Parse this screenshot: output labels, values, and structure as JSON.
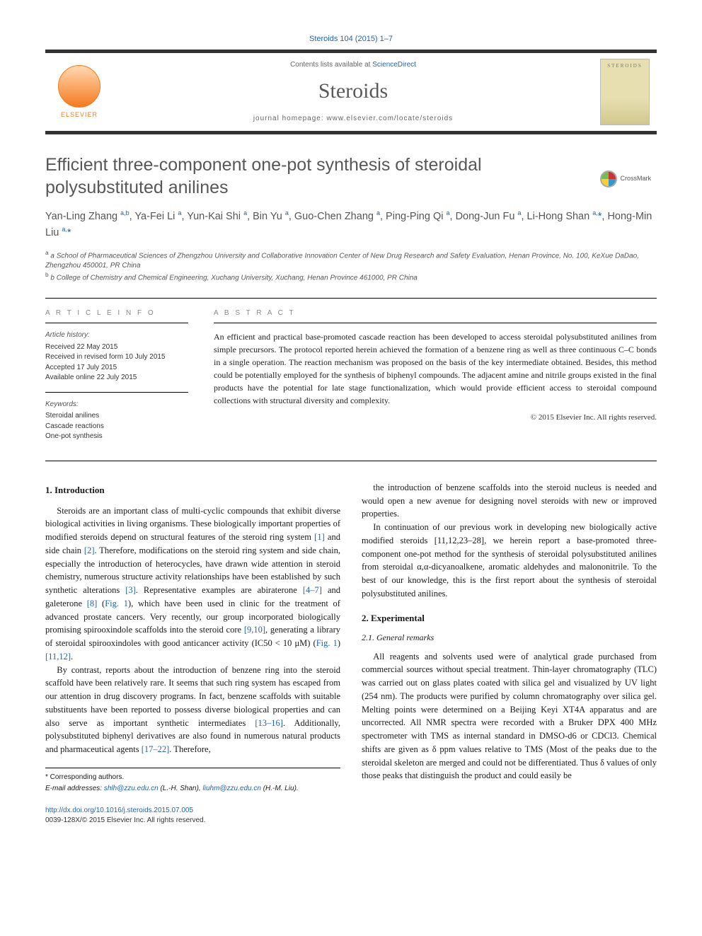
{
  "citation": "Steroids 104 (2015) 1–7",
  "header": {
    "contents_prefix": "Contents lists available at ",
    "contents_link": "ScienceDirect",
    "journal_title": "Steroids",
    "homepage_label": "journal homepage: ",
    "homepage_url": "www.elsevier.com/locate/steroids",
    "publisher_logo": "ELSEVIER",
    "cover_label": "STEROIDS"
  },
  "article": {
    "title": "Efficient three-component one-pot synthesis of steroidal polysubstituted anilines",
    "crossmark": "CrossMark",
    "authors_html": "Yan-Ling Zhang <sup>a,b</sup>, Ya-Fei Li <sup>a</sup>, Yun-Kai Shi <sup>a</sup>, Bin Yu <sup>a</sup>, Guo-Chen Zhang <sup>a</sup>, Ping-Ping Qi <sup>a</sup>, Dong-Jun Fu <sup>a</sup>, Li-Hong Shan <sup>a,</sup><span class='star'>*</span>, Hong-Min Liu <sup>a,</sup><span class='star'>*</span>",
    "affiliations": [
      "a School of Pharmaceutical Sciences of Zhengzhou University and Collaborative Innovation Center of New Drug Research and Safety Evaluation, Henan Province, No. 100, KeXue DaDao, Zhengzhou 450001, PR China",
      "b College of Chemistry and Chemical Engineering, Xuchang University, Xuchang, Henan Province 461000, PR China"
    ]
  },
  "info": {
    "heading": "A R T I C L E   I N F O",
    "history_label": "Article history:",
    "history": [
      "Received 22 May 2015",
      "Received in revised form 10 July 2015",
      "Accepted 17 July 2015",
      "Available online 22 July 2015"
    ],
    "keywords_label": "Keywords:",
    "keywords": [
      "Steroidal anilines",
      "Cascade reactions",
      "One-pot synthesis"
    ]
  },
  "abstract": {
    "heading": "A B S T R A C T",
    "text": "An efficient and practical base-promoted cascade reaction has been developed to access steroidal polysubstituted anilines from simple precursors. The protocol reported herein achieved the formation of a benzene ring as well as three continuous C–C bonds in a single operation. The reaction mechanism was proposed on the basis of the key intermediate obtained. Besides, this method could be potentially employed for the synthesis of biphenyl compounds. The adjacent amine and nitrile groups existed in the final products have the potential for late stage functionalization, which would provide efficient access to steroidal compound collections with structural diversity and complexity.",
    "copyright": "© 2015 Elsevier Inc. All rights reserved."
  },
  "body": {
    "s1_heading": "1. Introduction",
    "s1_p1": "Steroids are an important class of multi-cyclic compounds that exhibit diverse biological activities in living organisms. These biologically important properties of modified steroids depend on structural features of the steroid ring system [1] and side chain [2]. Therefore, modifications on the steroid ring system and side chain, especially the introduction of heterocycles, have drawn wide attention in steroid chemistry, numerous structure activity relationships have been established by such synthetic alterations [3]. Representative examples are abiraterone [4–7] and galeterone [8] (Fig. 1), which have been used in clinic for the treatment of advanced prostate cancers. Very recently, our group incorporated biologically promising spirooxindole scaffolds into the steroid core [9,10], generating a library of steroidal spirooxindoles with good anticancer activity (IC50 < 10 μM) (Fig. 1) [11,12].",
    "s1_p2": "By contrast, reports about the introduction of benzene ring into the steroid scaffold have been relatively rare. It seems that such ring system has escaped from our attention in drug discovery programs. In fact, benzene scaffolds with suitable substituents have been reported to possess diverse biological properties and can also serve as important synthetic intermediates [13–16]. Additionally, polysubstituted biphenyl derivatives are also found in numerous natural products and pharmaceutical agents [17–22]. Therefore,",
    "s1_p3": "the introduction of benzene scaffolds into the steroid nucleus is needed and would open a new avenue for designing novel steroids with new or improved properties.",
    "s1_p4": "In continuation of our previous work in developing new biologically active modified steroids [11,12,23–28], we herein report a base-promoted three-component one-pot method for the synthesis of steroidal polysubstituted anilines from steroidal α,α-dicyanoalkene, aromatic aldehydes and malononitrile. To the best of our knowledge, this is the first report about the synthesis of steroidal polysubstituted anilines.",
    "s2_heading": "2. Experimental",
    "s2_1_heading": "2.1. General remarks",
    "s2_1_p1": "All reagents and solvents used were of analytical grade purchased from commercial sources without special treatment. Thin-layer chromatography (TLC) was carried out on glass plates coated with silica gel and visualized by UV light (254 nm). The products were purified by column chromatography over silica gel. Melting points were determined on a Beijing Keyi XT4A apparatus and are uncorrected. All NMR spectra were recorded with a Bruker DPX 400 MHz spectrometer with TMS as internal standard in DMSO-d6 or CDCl3. Chemical shifts are given as δ ppm values relative to TMS (Most of the peaks due to the steroidal skeleton are merged and could not be differentiated. Thus δ values of only those peaks that distinguish the product and could easily be"
  },
  "footer": {
    "corr_label": "* Corresponding authors.",
    "email_label": "E-mail addresses: ",
    "email1": "shlh@zzu.edu.cn",
    "email1_who": " (L.-H. Shan), ",
    "email2": "liuhm@zzu.edu.cn",
    "email2_who": " (H.-M. Liu).",
    "doi": "http://dx.doi.org/10.1016/j.steroids.2015.07.005",
    "issn": "0039-128X/© 2015 Elsevier Inc. All rights reserved."
  },
  "colors": {
    "link": "#2264b0",
    "accent_orange": "#f47a20",
    "heading_gray": "#575757",
    "rule": "#000000"
  }
}
